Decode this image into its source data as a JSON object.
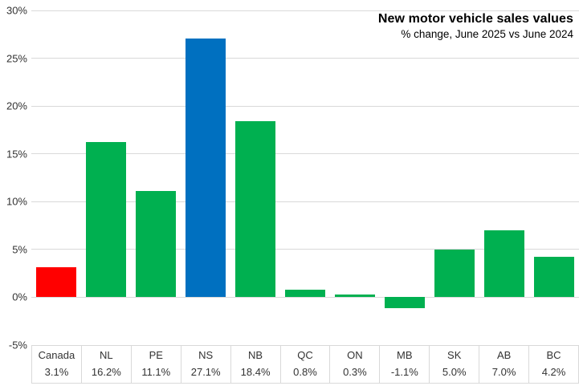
{
  "chart_data": {
    "type": "bar",
    "title": "New motor vehicle sales values",
    "subtitle": "% change, June 2025 vs June 2024",
    "categories": [
      "Canada",
      "NL",
      "PE",
      "NS",
      "NB",
      "QC",
      "ON",
      "MB",
      "SK",
      "AB",
      "BC"
    ],
    "values": [
      3.1,
      16.2,
      11.1,
      27.1,
      18.4,
      0.8,
      0.3,
      -1.1,
      5.0,
      7.0,
      4.2
    ],
    "value_labels": [
      "3.1%",
      "16.2%",
      "11.1%",
      "27.1%",
      "18.4%",
      "0.8%",
      "0.3%",
      "-1.1%",
      "5.0%",
      "7.0%",
      "4.2%"
    ],
    "bar_colors": [
      "#ff0000",
      "#00b050",
      "#00b050",
      "#0070c0",
      "#00b050",
      "#00b050",
      "#00b050",
      "#00b050",
      "#00b050",
      "#00b050",
      "#00b050"
    ],
    "ylim": [
      -5,
      30
    ],
    "y_tick_step": 5,
    "y_tick_labels": [
      "30%",
      "25%",
      "20%",
      "15%",
      "10%",
      "5%",
      "0%",
      "-5%"
    ],
    "grid": true,
    "legend": "none",
    "xlabel": "",
    "ylabel": "",
    "colors": {
      "canada_bar": "#ff0000",
      "nova_scotia_bar": "#0070c0",
      "province_bar": "#00b050",
      "gridline": "#d9d9d9",
      "axis_text": "#333333",
      "title_text": "#000000"
    }
  }
}
